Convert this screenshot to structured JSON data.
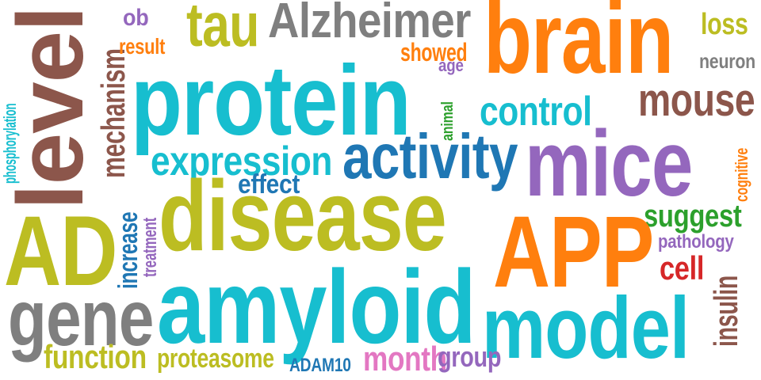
{
  "palette": {
    "orange": "#ff7f0e",
    "cyan": "#17becf",
    "olive": "#bcbd22",
    "gray": "#7f7f7f",
    "brown": "#8c564b",
    "purple": "#9467bd",
    "blue": "#1f77b4",
    "green": "#2ca02c",
    "red": "#d62728",
    "pink": "#e377c2"
  },
  "words": [
    {
      "id": "level",
      "text": "level",
      "color": "#8c564b"
    },
    {
      "id": "phosphorylation",
      "text": "phosphorylation",
      "color": "#17becf"
    },
    {
      "id": "mechanism",
      "text": "mechanism",
      "color": "#8c564b"
    },
    {
      "id": "ob",
      "text": "ob",
      "color": "#9467bd"
    },
    {
      "id": "result",
      "text": "result",
      "color": "#ff7f0e"
    },
    {
      "id": "tau",
      "text": "tau",
      "color": "#bcbd22"
    },
    {
      "id": "alzheimer",
      "text": "Alzheimer",
      "color": "#7f7f7f"
    },
    {
      "id": "showed",
      "text": "showed",
      "color": "#ff7f0e"
    },
    {
      "id": "age",
      "text": "age",
      "color": "#9467bd"
    },
    {
      "id": "brain",
      "text": "brain",
      "color": "#ff7f0e"
    },
    {
      "id": "loss",
      "text": "loss",
      "color": "#bcbd22"
    },
    {
      "id": "neuron",
      "text": "neuron",
      "color": "#7f7f7f"
    },
    {
      "id": "protein",
      "text": "protein",
      "color": "#17becf"
    },
    {
      "id": "animal",
      "text": "animal",
      "color": "#2ca02c"
    },
    {
      "id": "control",
      "text": "control",
      "color": "#17becf"
    },
    {
      "id": "mouse",
      "text": "mouse",
      "color": "#8c564b"
    },
    {
      "id": "expression",
      "text": "expression",
      "color": "#17becf"
    },
    {
      "id": "activity",
      "text": "activity",
      "color": "#1f77b4"
    },
    {
      "id": "mice",
      "text": "mice",
      "color": "#9467bd"
    },
    {
      "id": "cognitive",
      "text": "cognitive",
      "color": "#ff7f0e"
    },
    {
      "id": "effect",
      "text": "effect",
      "color": "#1f77b4"
    },
    {
      "id": "increase",
      "text": "increase",
      "color": "#1f77b4"
    },
    {
      "id": "treatment",
      "text": "treatment",
      "color": "#9467bd"
    },
    {
      "id": "AD",
      "text": "AD",
      "color": "#bcbd22"
    },
    {
      "id": "disease",
      "text": "disease",
      "color": "#bcbd22"
    },
    {
      "id": "suggest",
      "text": "suggest",
      "color": "#2ca02c"
    },
    {
      "id": "APP",
      "text": "APP",
      "color": "#ff7f0e"
    },
    {
      "id": "pathology",
      "text": "pathology",
      "color": "#9467bd"
    },
    {
      "id": "cell",
      "text": "cell",
      "color": "#d62728"
    },
    {
      "id": "gene",
      "text": "gene",
      "color": "#7f7f7f"
    },
    {
      "id": "amyloid",
      "text": "amyloid",
      "color": "#17becf"
    },
    {
      "id": "model",
      "text": "model",
      "color": "#17becf"
    },
    {
      "id": "insulin",
      "text": "insulin",
      "color": "#8c564b"
    },
    {
      "id": "function",
      "text": "function",
      "color": "#bcbd22"
    },
    {
      "id": "proteasome",
      "text": "proteasome",
      "color": "#bcbd22"
    },
    {
      "id": "ADAM10",
      "text": "ADAM10",
      "color": "#1f77b4"
    },
    {
      "id": "month",
      "text": "month",
      "color": "#e377c2"
    },
    {
      "id": "group",
      "text": "group",
      "color": "#9467bd"
    }
  ]
}
